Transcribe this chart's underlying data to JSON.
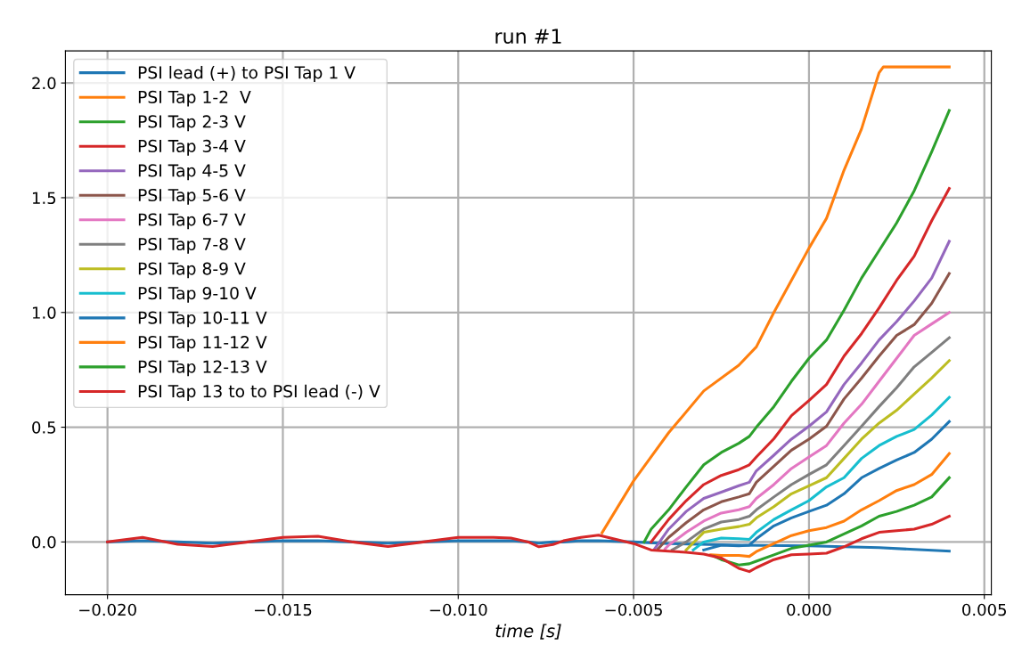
{
  "chart_data": {
    "type": "line",
    "title": "run #1",
    "xlabel": "time [s]",
    "xlim": [
      -0.0212,
      0.0052
    ],
    "ylim": [
      -0.23,
      2.14
    ],
    "xticks": [
      {
        "value": -0.02,
        "label": "−0.020"
      },
      {
        "value": -0.015,
        "label": "−0.015"
      },
      {
        "value": -0.01,
        "label": "−0.010"
      },
      {
        "value": -0.005,
        "label": "−0.005"
      },
      {
        "value": 0,
        "label": "0.000"
      },
      {
        "value": 0.005,
        "label": "0.005"
      }
    ],
    "yticks": [
      {
        "value": 0,
        "label": "0.0"
      },
      {
        "value": 0.5,
        "label": "0.5"
      },
      {
        "value": 1.0,
        "label": "1.0"
      },
      {
        "value": 1.5,
        "label": "1.5"
      },
      {
        "value": 2.0,
        "label": "2.0"
      }
    ],
    "grid": true,
    "legend": "top left",
    "line_style": "solid",
    "marker": "none",
    "series": [
      {
        "name": "PSI lead (+) to PSI Tap 1 V",
        "color": "#1f77b4",
        "x": [
          -0.02,
          -0.019,
          -0.018,
          -0.017,
          -0.016,
          -0.015,
          -0.014,
          -0.013,
          -0.012,
          -0.011,
          -0.01,
          -0.009,
          -0.0085,
          -0.008,
          -0.0077,
          -0.0073,
          -0.007,
          -0.0065,
          -0.006,
          -0.005,
          -0.004,
          -0.002,
          0,
          0.002,
          0.004
        ],
        "values": [
          0,
          0.005,
          0,
          -0.005,
          0,
          0.005,
          0.005,
          0,
          -0.005,
          0,
          0.005,
          0.005,
          0.005,
          0,
          -0.005,
          0,
          0,
          0.005,
          0.005,
          0,
          -0.007,
          -0.014,
          -0.017,
          -0.025,
          -0.04
        ]
      },
      {
        "name": "PSI Tap 1-2  V",
        "color": "#ff7f0e",
        "x": [
          -0.0059,
          -0.005,
          -0.004,
          -0.003,
          -0.002,
          -0.0015,
          -0.001,
          -0.0005,
          0,
          0.0005,
          0.001,
          0.0015,
          0.002,
          0.00212,
          0.004
        ],
        "values": [
          0.04,
          0.266,
          0.476,
          0.658,
          0.77,
          0.85,
          1.0,
          1.14,
          1.28,
          1.41,
          1.62,
          1.8,
          2.045,
          2.07,
          2.07
        ]
      },
      {
        "name": "PSI Tap 2-3 V",
        "color": "#2ca02c",
        "x": [
          -0.0047,
          -0.0045,
          -0.004,
          -0.0035,
          -0.003,
          -0.0025,
          -0.002,
          -0.0017,
          -0.0015,
          -0.001,
          -0.0005,
          0,
          0.0005,
          0.001,
          0.0015,
          0.002,
          0.0025,
          0.003,
          0.0035,
          0.004
        ],
        "values": [
          0.0,
          0.056,
          0.14,
          0.24,
          0.336,
          0.39,
          0.43,
          0.46,
          0.5,
          0.59,
          0.7,
          0.8,
          0.88,
          1.01,
          1.15,
          1.27,
          1.39,
          1.53,
          1.7,
          1.88
        ]
      },
      {
        "name": "PSI Tap 3-4 V",
        "color": "#d62728",
        "x": [
          -0.0045,
          -0.004,
          -0.0035,
          -0.003,
          -0.0025,
          -0.002,
          -0.0017,
          -0.0015,
          -0.001,
          -0.0005,
          0,
          0.0005,
          0.001,
          0.0015,
          0.002,
          0.0025,
          0.003,
          0.0035,
          0.004
        ],
        "values": [
          0.0,
          0.098,
          0.18,
          0.25,
          0.29,
          0.315,
          0.336,
          0.37,
          0.45,
          0.55,
          0.616,
          0.686,
          0.81,
          0.908,
          1.02,
          1.14,
          1.245,
          1.4,
          1.54
        ]
      },
      {
        "name": "PSI Tap 4-5 V",
        "color": "#9467bd",
        "x": [
          -0.0044,
          -0.004,
          -0.0035,
          -0.003,
          -0.0025,
          -0.002,
          -0.0017,
          -0.0015,
          -0.001,
          -0.0005,
          0,
          0.0005,
          0.001,
          0.0015,
          0.002,
          0.0025,
          0.003,
          0.0035,
          0.004
        ],
        "values": [
          -0.03,
          0.056,
          0.133,
          0.19,
          0.217,
          0.245,
          0.26,
          0.31,
          0.378,
          0.448,
          0.504,
          0.567,
          0.686,
          0.78,
          0.88,
          0.96,
          1.05,
          1.15,
          1.31
        ]
      },
      {
        "name": "PSI Tap 5-6 V",
        "color": "#8c564b",
        "x": [
          -0.0043,
          -0.004,
          -0.0035,
          -0.003,
          -0.0025,
          -0.002,
          -0.0017,
          -0.0015,
          -0.001,
          -0.0005,
          0,
          0.0005,
          0.001,
          0.0015,
          0.002,
          0.0025,
          0.003,
          0.0035,
          0.004
        ],
        "values": [
          -0.03,
          0.02,
          0.084,
          0.14,
          0.175,
          0.196,
          0.21,
          0.26,
          0.33,
          0.4,
          0.448,
          0.504,
          0.623,
          0.714,
          0.81,
          0.9,
          0.947,
          1.04,
          1.17
        ]
      },
      {
        "name": "PSI Tap 6-7 V",
        "color": "#e377c2",
        "x": [
          -0.0041,
          -0.004,
          -0.0035,
          -0.003,
          -0.0025,
          -0.002,
          -0.0017,
          -0.0015,
          -0.001,
          -0.0005,
          0,
          0.0005,
          0.001,
          0.0015,
          0.002,
          0.0025,
          0.003,
          0.0035,
          0.004
        ],
        "values": [
          -0.03,
          -0.014,
          0.042,
          0.091,
          0.126,
          0.14,
          0.154,
          0.19,
          0.25,
          0.32,
          0.37,
          0.42,
          0.518,
          0.6,
          0.7,
          0.8,
          0.9,
          0.95,
          1.0
        ]
      },
      {
        "name": "PSI Tap 7-8 V",
        "color": "#7f7f7f",
        "x": [
          -0.0039,
          -0.0035,
          -0.003,
          -0.0025,
          -0.002,
          -0.0017,
          -0.0015,
          -0.001,
          -0.0005,
          0,
          0.0005,
          0.001,
          0.0015,
          0.002,
          0.0025,
          0.003,
          0.0035,
          0.004
        ],
        "values": [
          -0.035,
          0.0,
          0.056,
          0.087,
          0.098,
          0.112,
          0.14,
          0.196,
          0.25,
          0.294,
          0.336,
          0.42,
          0.504,
          0.59,
          0.672,
          0.763,
          0.826,
          0.89
        ]
      },
      {
        "name": "PSI Tap 8-9 V",
        "color": "#bcbd22",
        "x": [
          -0.0035,
          -0.003,
          -0.0025,
          -0.002,
          -0.0017,
          -0.0015,
          -0.001,
          -0.0005,
          0,
          0.0005,
          0.001,
          0.0015,
          0.002,
          0.0025,
          0.003,
          0.0035,
          0.004
        ],
        "values": [
          -0.035,
          0.042,
          0.056,
          0.067,
          0.077,
          0.105,
          0.154,
          0.21,
          0.245,
          0.28,
          0.364,
          0.448,
          0.518,
          0.574,
          0.644,
          0.714,
          0.79
        ]
      },
      {
        "name": "PSI Tap 9-10 V",
        "color": "#17becf",
        "x": [
          -0.0033,
          -0.003,
          -0.0025,
          -0.002,
          -0.0017,
          -0.0015,
          -0.001,
          -0.0005,
          0,
          0.0005,
          0.001,
          0.0015,
          0.002,
          0.0025,
          0.003,
          0.0035,
          0.004
        ],
        "values": [
          -0.035,
          0.0,
          0.017,
          0.014,
          0.011,
          0.042,
          0.098,
          0.14,
          0.18,
          0.24,
          0.28,
          0.364,
          0.42,
          0.46,
          0.49,
          0.553,
          0.63
        ]
      },
      {
        "name": "PSI Tap 10-11 V",
        "color": "#1f77b4",
        "x": [
          -0.003,
          -0.0025,
          -0.002,
          -0.0017,
          -0.0015,
          -0.001,
          -0.0005,
          0,
          0.0005,
          0.001,
          0.0015,
          0.002,
          0.0025,
          0.003,
          0.0035,
          0.004
        ],
        "values": [
          -0.035,
          -0.014,
          -0.017,
          -0.014,
          0.014,
          0.07,
          0.105,
          0.133,
          0.16,
          0.21,
          0.28,
          0.32,
          0.357,
          0.39,
          0.448,
          0.525
        ]
      },
      {
        "name": "PSI Tap 11-12 V",
        "color": "#ff7f0e",
        "x": [
          -0.0028,
          -0.0025,
          -0.002,
          -0.0017,
          -0.0015,
          -0.001,
          -0.0005,
          0,
          0.0005,
          0.001,
          0.0015,
          0.002,
          0.0025,
          0.003,
          0.0035,
          0.004
        ],
        "values": [
          -0.056,
          -0.059,
          -0.059,
          -0.063,
          -0.042,
          -0.007,
          0.028,
          0.049,
          0.063,
          0.091,
          0.14,
          0.18,
          0.224,
          0.25,
          0.294,
          0.385
        ]
      },
      {
        "name": "PSI Tap 12-13 V",
        "color": "#2ca02c",
        "x": [
          -0.0027,
          -0.0025,
          -0.002,
          -0.0017,
          -0.0015,
          -0.001,
          -0.0005,
          0,
          0.0005,
          0.001,
          0.0015,
          0.002,
          0.0025,
          0.003,
          0.0035,
          0.004
        ],
        "values": [
          -0.063,
          -0.077,
          -0.1,
          -0.095,
          -0.084,
          -0.056,
          -0.028,
          -0.014,
          0.0,
          0.035,
          0.07,
          0.112,
          0.133,
          0.16,
          0.196,
          0.28
        ]
      },
      {
        "name": "PSI Tap 13 to to PSI lead (-) V",
        "color": "#d62728",
        "x": [
          -0.02,
          -0.019,
          -0.018,
          -0.017,
          -0.016,
          -0.015,
          -0.014,
          -0.013,
          -0.012,
          -0.011,
          -0.01,
          -0.009,
          -0.0085,
          -0.008,
          -0.0077,
          -0.0073,
          -0.007,
          -0.0065,
          -0.006,
          -0.005,
          -0.0045,
          -0.004,
          -0.0035,
          -0.003,
          -0.0025,
          -0.002,
          -0.0017,
          -0.0015,
          -0.001,
          -0.0005,
          0,
          0.0005,
          0.001,
          0.0015,
          0.002,
          0.0025,
          0.003,
          0.0035,
          0.004
        ],
        "values": [
          0.0,
          0.02,
          -0.01,
          -0.02,
          0.0,
          0.02,
          0.025,
          0.0,
          -0.02,
          0.0,
          0.02,
          0.02,
          0.017,
          0.0,
          -0.021,
          -0.011,
          0.005,
          0.02,
          0.03,
          -0.007,
          -0.035,
          -0.04,
          -0.045,
          -0.053,
          -0.07,
          -0.115,
          -0.129,
          -0.112,
          -0.077,
          -0.056,
          -0.053,
          -0.049,
          -0.021,
          0.014,
          0.042,
          0.049,
          0.056,
          0.077,
          0.112
        ]
      }
    ]
  }
}
